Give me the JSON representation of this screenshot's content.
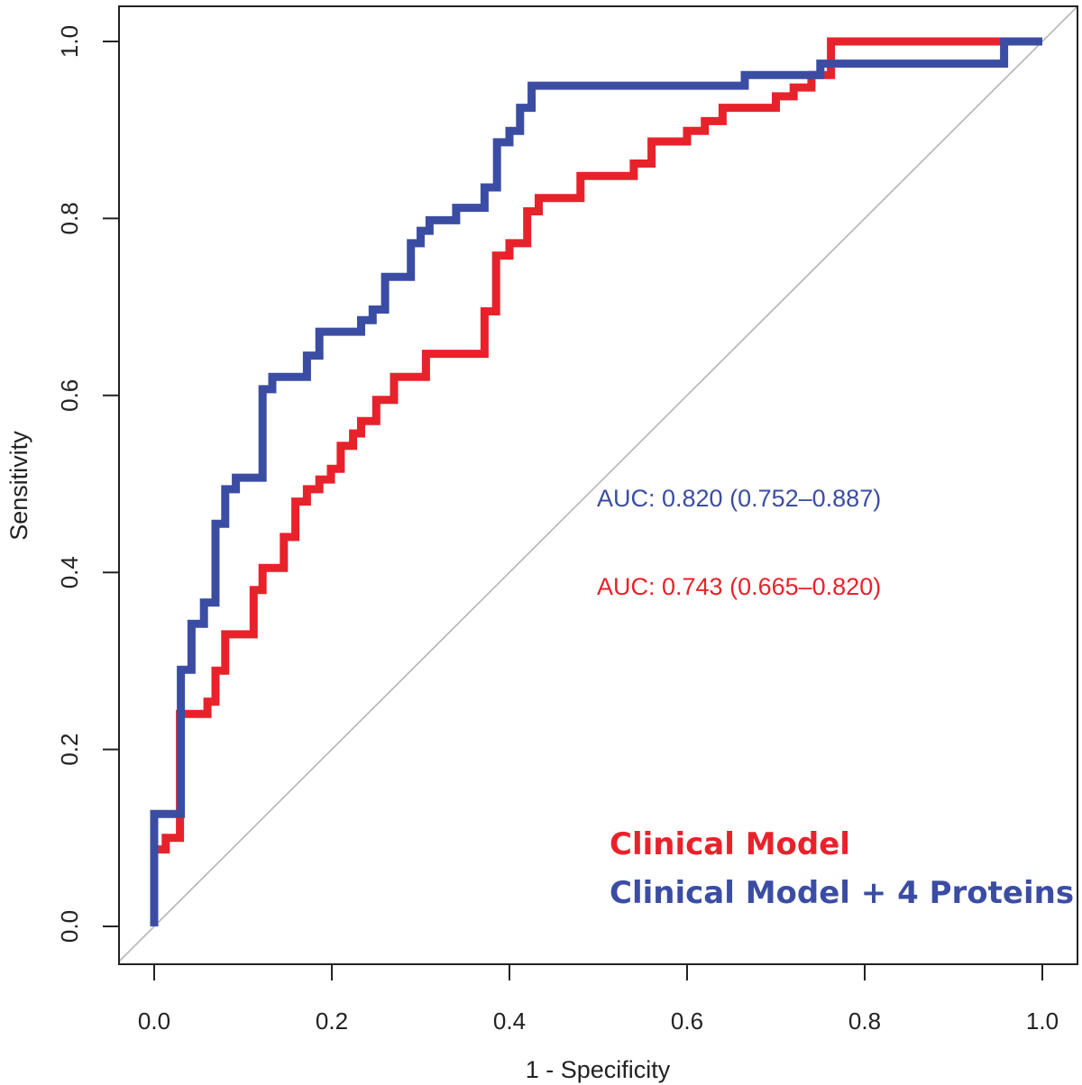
{
  "chart_data": {
    "type": "line",
    "title": "",
    "xlabel": "1 - Specificity",
    "ylabel": "Sensitivity",
    "xlim": [
      0.0,
      1.0
    ],
    "ylim": [
      0.0,
      1.0
    ],
    "x_ticks": [
      "0.0",
      "0.2",
      "0.4",
      "0.6",
      "0.8",
      "1.0"
    ],
    "y_ticks": [
      "0.0",
      "0.2",
      "0.4",
      "0.6",
      "0.8",
      "1.0"
    ],
    "grid": false,
    "diagonal_reference": true,
    "colors": {
      "red": "#e8222b",
      "blue": "#3b4da3",
      "diagonal": "#b4b4b4",
      "axis": "#222222"
    },
    "annotations": {
      "auc_blue": "AUC: 0.820 (0.752–0.887)",
      "auc_red": "AUC: 0.743 (0.665–0.820)"
    },
    "legend": {
      "position": "bottom-right",
      "entries": [
        "Clinical Model",
        "Clinical Model + 4 Proteins"
      ]
    },
    "series": [
      {
        "name": "Clinical Model",
        "color": "#e8222b",
        "points": [
          [
            0.0,
            0.0
          ],
          [
            0.0,
            0.087
          ],
          [
            0.013,
            0.087
          ],
          [
            0.013,
            0.1
          ],
          [
            0.029,
            0.1
          ],
          [
            0.029,
            0.24
          ],
          [
            0.06,
            0.24
          ],
          [
            0.06,
            0.254
          ],
          [
            0.069,
            0.254
          ],
          [
            0.069,
            0.289
          ],
          [
            0.08,
            0.289
          ],
          [
            0.08,
            0.33
          ],
          [
            0.112,
            0.33
          ],
          [
            0.112,
            0.38
          ],
          [
            0.122,
            0.38
          ],
          [
            0.122,
            0.405
          ],
          [
            0.146,
            0.405
          ],
          [
            0.146,
            0.44
          ],
          [
            0.159,
            0.44
          ],
          [
            0.159,
            0.48
          ],
          [
            0.172,
            0.48
          ],
          [
            0.172,
            0.494
          ],
          [
            0.186,
            0.494
          ],
          [
            0.186,
            0.505
          ],
          [
            0.199,
            0.505
          ],
          [
            0.199,
            0.517
          ],
          [
            0.21,
            0.517
          ],
          [
            0.21,
            0.543
          ],
          [
            0.224,
            0.543
          ],
          [
            0.224,
            0.557
          ],
          [
            0.233,
            0.557
          ],
          [
            0.233,
            0.571
          ],
          [
            0.25,
            0.571
          ],
          [
            0.25,
            0.595
          ],
          [
            0.27,
            0.595
          ],
          [
            0.27,
            0.621
          ],
          [
            0.306,
            0.621
          ],
          [
            0.306,
            0.647
          ],
          [
            0.372,
            0.647
          ],
          [
            0.372,
            0.695
          ],
          [
            0.385,
            0.695
          ],
          [
            0.385,
            0.758
          ],
          [
            0.4,
            0.758
          ],
          [
            0.4,
            0.772
          ],
          [
            0.42,
            0.772
          ],
          [
            0.42,
            0.808
          ],
          [
            0.433,
            0.808
          ],
          [
            0.433,
            0.823
          ],
          [
            0.48,
            0.823
          ],
          [
            0.48,
            0.848
          ],
          [
            0.54,
            0.848
          ],
          [
            0.54,
            0.862
          ],
          [
            0.56,
            0.862
          ],
          [
            0.56,
            0.887
          ],
          [
            0.6,
            0.887
          ],
          [
            0.6,
            0.899
          ],
          [
            0.62,
            0.899
          ],
          [
            0.62,
            0.91
          ],
          [
            0.64,
            0.91
          ],
          [
            0.64,
            0.925
          ],
          [
            0.7,
            0.925
          ],
          [
            0.7,
            0.938
          ],
          [
            0.72,
            0.938
          ],
          [
            0.72,
            0.948
          ],
          [
            0.74,
            0.948
          ],
          [
            0.74,
            0.962
          ],
          [
            0.762,
            0.962
          ],
          [
            0.762,
            1.0
          ],
          [
            0.957,
            1.0
          ]
        ]
      },
      {
        "name": "Clinical Model + 4 Proteins",
        "color": "#3b4da3",
        "points": [
          [
            0.0,
            0.0
          ],
          [
            0.0,
            0.127
          ],
          [
            0.03,
            0.127
          ],
          [
            0.03,
            0.29
          ],
          [
            0.042,
            0.29
          ],
          [
            0.042,
            0.342
          ],
          [
            0.056,
            0.342
          ],
          [
            0.056,
            0.366
          ],
          [
            0.069,
            0.366
          ],
          [
            0.069,
            0.455
          ],
          [
            0.08,
            0.455
          ],
          [
            0.08,
            0.494
          ],
          [
            0.092,
            0.494
          ],
          [
            0.092,
            0.507
          ],
          [
            0.122,
            0.507
          ],
          [
            0.122,
            0.607
          ],
          [
            0.133,
            0.607
          ],
          [
            0.133,
            0.621
          ],
          [
            0.172,
            0.621
          ],
          [
            0.172,
            0.645
          ],
          [
            0.186,
            0.645
          ],
          [
            0.186,
            0.672
          ],
          [
            0.233,
            0.672
          ],
          [
            0.233,
            0.685
          ],
          [
            0.246,
            0.685
          ],
          [
            0.246,
            0.697
          ],
          [
            0.26,
            0.697
          ],
          [
            0.26,
            0.734
          ],
          [
            0.289,
            0.734
          ],
          [
            0.289,
            0.772
          ],
          [
            0.3,
            0.772
          ],
          [
            0.3,
            0.786
          ],
          [
            0.31,
            0.786
          ],
          [
            0.31,
            0.798
          ],
          [
            0.34,
            0.798
          ],
          [
            0.34,
            0.812
          ],
          [
            0.372,
            0.812
          ],
          [
            0.372,
            0.835
          ],
          [
            0.386,
            0.835
          ],
          [
            0.386,
            0.886
          ],
          [
            0.4,
            0.886
          ],
          [
            0.4,
            0.899
          ],
          [
            0.412,
            0.899
          ],
          [
            0.412,
            0.925
          ],
          [
            0.425,
            0.925
          ],
          [
            0.425,
            0.95
          ],
          [
            0.665,
            0.95
          ],
          [
            0.665,
            0.962
          ],
          [
            0.75,
            0.962
          ],
          [
            0.75,
            0.975
          ],
          [
            0.957,
            0.975
          ],
          [
            0.957,
            1.0
          ],
          [
            1.0,
            1.0
          ]
        ]
      }
    ]
  }
}
